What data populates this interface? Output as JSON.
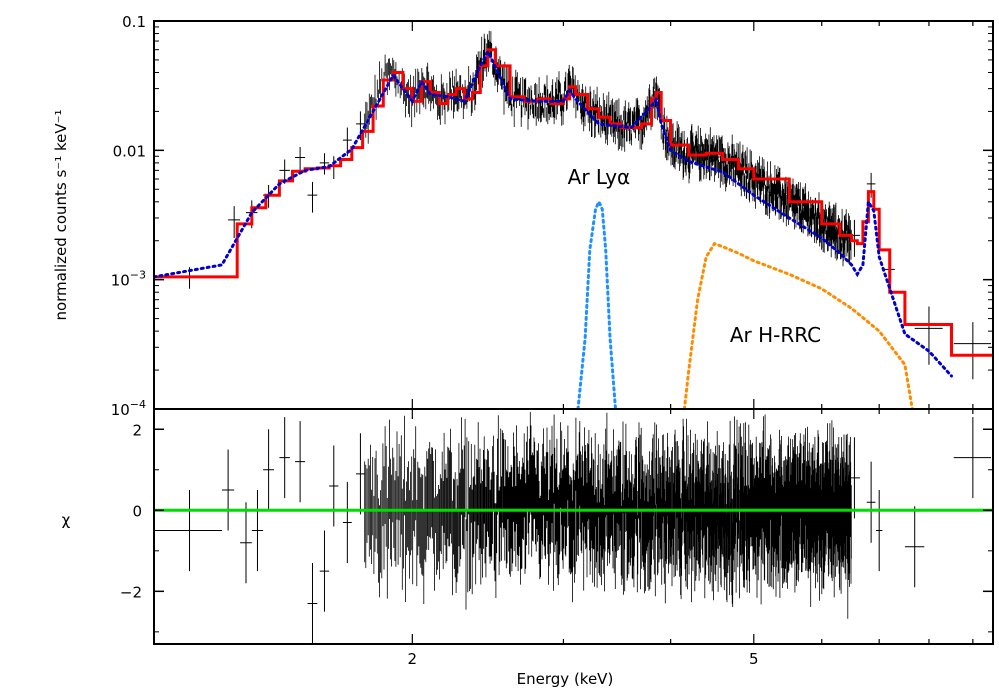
{
  "chart_data": [
    {
      "type": "line",
      "panel": "spectrum",
      "ylabel": "normalized counts s⁻¹ keV⁻¹",
      "xscale": "log",
      "yscale": "log",
      "xlim": [
        1.0,
        9.5
      ],
      "ylim": [
        0.0001,
        0.1
      ],
      "yticks": [
        {
          "value": 0.1,
          "label": "0.1"
        },
        {
          "value": 0.01,
          "label": "0.01"
        },
        {
          "value": 0.001,
          "label": "10",
          "sup": "−3"
        },
        {
          "value": 0.0001,
          "label": "10",
          "sup": "−4"
        }
      ],
      "annotations": [
        {
          "text": "Ar Lyα",
          "x": 3.3,
          "y": 0.0055
        },
        {
          "text": "Ar H-RRC",
          "x": 5.3,
          "y": 0.00033
        }
      ],
      "colors": {
        "model": "#ff0000",
        "continuum": "#0000cc",
        "lya": "#1e90ff",
        "rrc": "#ff8c00",
        "data": "#000000"
      },
      "series": [
        {
          "name": "total model",
          "style": "solid",
          "color": "#ff0000",
          "x": [
            1.0,
            1.2,
            1.25,
            1.3,
            1.35,
            1.4,
            1.45,
            1.5,
            1.55,
            1.6,
            1.65,
            1.7,
            1.75,
            1.8,
            1.85,
            1.9,
            1.95,
            2.0,
            2.05,
            2.1,
            2.15,
            2.2,
            2.25,
            2.3,
            2.35,
            2.4,
            2.45,
            2.5,
            2.6,
            2.7,
            2.8,
            2.9,
            3.0,
            3.05,
            3.1,
            3.2,
            3.3,
            3.4,
            3.5,
            3.6,
            3.7,
            3.8,
            3.85,
            3.9,
            4.0,
            4.2,
            4.4,
            4.6,
            4.8,
            5.0,
            5.5,
            6.0,
            6.3,
            6.5,
            6.6,
            6.7,
            6.8,
            6.9,
            7.0,
            7.2,
            7.5,
            8.0,
            8.5,
            9.5
          ],
          "y": [
            0.00105,
            0.00105,
            0.0027,
            0.0036,
            0.0045,
            0.0058,
            0.0069,
            0.0072,
            0.0073,
            0.0076,
            0.0085,
            0.0105,
            0.014,
            0.022,
            0.035,
            0.04,
            0.03,
            0.024,
            0.034,
            0.028,
            0.023,
            0.027,
            0.03,
            0.025,
            0.028,
            0.045,
            0.06,
            0.045,
            0.026,
            0.024,
            0.025,
            0.023,
            0.025,
            0.031,
            0.027,
            0.021,
            0.018,
            0.016,
            0.015,
            0.015,
            0.016,
            0.025,
            0.028,
            0.017,
            0.011,
            0.0092,
            0.0095,
            0.0085,
            0.0072,
            0.006,
            0.004,
            0.0027,
            0.0022,
            0.002,
            0.0019,
            0.0028,
            0.0048,
            0.0035,
            0.0017,
            0.0008,
            0.00045,
            0.00045,
            0.00026,
            0.00026
          ]
        },
        {
          "name": "continuum",
          "style": "dotted",
          "color": "#0000cc",
          "x": [
            1.0,
            1.2,
            1.3,
            1.4,
            1.5,
            1.6,
            1.7,
            1.8,
            1.9,
            2.0,
            2.05,
            2.1,
            2.2,
            2.3,
            2.4,
            2.45,
            2.5,
            2.6,
            2.8,
            3.0,
            3.05,
            3.1,
            3.3,
            3.6,
            3.8,
            3.85,
            3.9,
            4.0,
            4.2,
            4.6,
            5.0,
            5.5,
            6.0,
            6.3,
            6.5,
            6.6,
            6.7,
            6.8,
            6.9,
            7.0,
            7.5,
            8.0,
            8.5
          ],
          "y": [
            0.00105,
            0.0013,
            0.0033,
            0.0055,
            0.007,
            0.0075,
            0.0102,
            0.02,
            0.038,
            0.024,
            0.034,
            0.027,
            0.026,
            0.024,
            0.045,
            0.058,
            0.044,
            0.025,
            0.024,
            0.024,
            0.029,
            0.025,
            0.016,
            0.015,
            0.022,
            0.025,
            0.016,
            0.01,
            0.0082,
            0.0068,
            0.0045,
            0.003,
            0.0021,
            0.0016,
            0.0013,
            0.0011,
            0.0013,
            0.004,
            0.0034,
            0.0015,
            0.00038,
            0.00028,
            0.00018
          ]
        },
        {
          "name": "Ar Lyα",
          "style": "dotted",
          "color": "#1e90ff",
          "x": [
            3.12,
            3.18,
            3.22,
            3.27,
            3.3,
            3.33,
            3.36,
            3.4,
            3.45
          ],
          "y": [
            0.0001,
            0.00035,
            0.0017,
            0.0035,
            0.004,
            0.0035,
            0.0017,
            0.00035,
            0.0001
          ]
        },
        {
          "name": "Ar H-RRC",
          "style": "dotted",
          "color": "#ff8c00",
          "x": [
            4.15,
            4.2,
            4.3,
            4.4,
            4.5,
            4.6,
            4.8,
            5.0,
            5.5,
            6.0,
            6.5,
            7.0,
            7.5,
            7.65
          ],
          "y": [
            0.0001,
            0.0002,
            0.0007,
            0.0015,
            0.0019,
            0.0018,
            0.0016,
            0.0014,
            0.0011,
            0.00085,
            0.0006,
            0.0004,
            0.00022,
            0.0001
          ]
        }
      ],
      "data_points": [
        {
          "x": 1.1,
          "xerr": 0.1,
          "y": 0.00105,
          "yerr": 0.0002
        },
        {
          "x": 1.24,
          "xerr": 0.02,
          "y": 0.0029,
          "yerr": 0.0008
        },
        {
          "x": 1.3,
          "xerr": 0.02,
          "y": 0.0033,
          "yerr": 0.0008
        },
        {
          "x": 1.36,
          "xerr": 0.02,
          "y": 0.0045,
          "yerr": 0.0009
        },
        {
          "x": 1.42,
          "xerr": 0.02,
          "y": 0.007,
          "yerr": 0.0015
        },
        {
          "x": 1.48,
          "xerr": 0.02,
          "y": 0.0088,
          "yerr": 0.0018
        },
        {
          "x": 1.53,
          "xerr": 0.02,
          "y": 0.0045,
          "yerr": 0.0012
        },
        {
          "x": 1.58,
          "xerr": 0.02,
          "y": 0.008,
          "yerr": 0.0015
        },
        {
          "x": 1.62,
          "xerr": 0.02,
          "y": 0.0075,
          "yerr": 0.0015
        },
        {
          "x": 1.68,
          "xerr": 0.02,
          "y": 0.012,
          "yerr": 0.003
        },
        {
          "x": 1.74,
          "xerr": 0.02,
          "y": 0.016,
          "yerr": 0.004
        },
        {
          "x": 6.55,
          "xerr": 0.1,
          "y": 0.0022,
          "yerr": 0.0007
        },
        {
          "x": 6.85,
          "xerr": 0.08,
          "y": 0.0055,
          "yerr": 0.0012
        },
        {
          "x": 7.2,
          "xerr": 0.1,
          "y": 0.0012,
          "yerr": 0.0004
        },
        {
          "x": 8.0,
          "xerr": 0.3,
          "y": 0.00042,
          "yerr": 0.0002
        },
        {
          "x": 9.0,
          "xerr": 0.45,
          "y": 0.00032,
          "yerr": 0.00015
        }
      ]
    },
    {
      "type": "scatter",
      "panel": "residuals",
      "ylabel": "χ",
      "xlabel": "Energy (keV)",
      "xscale": "log",
      "xlim": [
        1.0,
        9.5
      ],
      "ylim": [
        -3.3,
        2.5
      ],
      "xticks": [
        {
          "value": 2,
          "label": "2"
        },
        {
          "value": 5,
          "label": "5"
        }
      ],
      "yticks": [
        {
          "value": 2,
          "label": "2"
        },
        {
          "value": 0,
          "label": "0"
        },
        {
          "value": -2,
          "label": "−2"
        }
      ],
      "zero_line_color": "#00dd00",
      "points": [
        {
          "x": 1.1,
          "xerr": 0.1,
          "y": -0.5,
          "yerr": 1.0
        },
        {
          "x": 1.22,
          "xerr": 0.02,
          "y": 0.5,
          "yerr": 1.0
        },
        {
          "x": 1.28,
          "xerr": 0.02,
          "y": -0.8,
          "yerr": 1.0
        },
        {
          "x": 1.32,
          "xerr": 0.02,
          "y": -0.5,
          "yerr": 1.0
        },
        {
          "x": 1.36,
          "xerr": 0.02,
          "y": 1.0,
          "yerr": 1.0
        },
        {
          "x": 1.42,
          "xerr": 0.02,
          "y": 1.3,
          "yerr": 1.0
        },
        {
          "x": 1.48,
          "xerr": 0.02,
          "y": 1.2,
          "yerr": 1.0
        },
        {
          "x": 1.53,
          "xerr": 0.02,
          "y": -2.3,
          "yerr": 1.0
        },
        {
          "x": 1.58,
          "xerr": 0.02,
          "y": -1.5,
          "yerr": 1.0
        },
        {
          "x": 1.62,
          "xerr": 0.02,
          "y": 0.6,
          "yerr": 1.0
        },
        {
          "x": 1.68,
          "xerr": 0.02,
          "y": -0.3,
          "yerr": 1.0
        },
        {
          "x": 1.74,
          "xerr": 0.02,
          "y": 0.9,
          "yerr": 1.0
        },
        {
          "x": 6.55,
          "xerr": 0.1,
          "y": 0.8,
          "yerr": 1.0
        },
        {
          "x": 6.85,
          "xerr": 0.08,
          "y": 0.2,
          "yerr": 1.0
        },
        {
          "x": 7.0,
          "xerr": 0.06,
          "y": -0.5,
          "yerr": 1.0
        },
        {
          "x": 7.7,
          "xerr": 0.2,
          "y": -0.9,
          "yerr": 1.0
        },
        {
          "x": 9.0,
          "xerr": 0.45,
          "y": 1.3,
          "yerr": 1.0
        }
      ]
    }
  ]
}
